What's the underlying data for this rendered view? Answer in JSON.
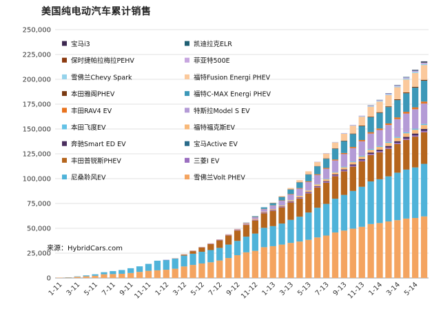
{
  "title": "美国纯电动汽车累计销售",
  "source": "来源：HybridCars.com",
  "chart_data": {
    "type": "bar",
    "stacked": true,
    "title": "美国纯电动汽车累计销售",
    "xlabel": "",
    "ylabel": "",
    "ylim": [
      0,
      250000
    ],
    "yticks": [
      "0",
      "25,000",
      "50,000",
      "75,000",
      "100,000",
      "125,000",
      "150,000",
      "175,000",
      "200,000",
      "225,000",
      "250,000"
    ],
    "categories": [
      "1-11",
      "2-11",
      "3-11",
      "4-11",
      "5-11",
      "6-11",
      "7-11",
      "8-11",
      "9-11",
      "10-11",
      "11-11",
      "12-11",
      "1-12",
      "2-12",
      "3-12",
      "4-12",
      "5-12",
      "6-12",
      "7-12",
      "8-12",
      "9-12",
      "10-12",
      "11-12",
      "12-12",
      "1-13",
      "2-13",
      "3-13",
      "4-13",
      "5-13",
      "6-13",
      "7-13",
      "8-13",
      "9-13",
      "10-13",
      "11-13",
      "12-13",
      "1-14",
      "2-14",
      "3-14",
      "4-14",
      "5-14",
      "6-14"
    ],
    "x_tick_labels": [
      "1-11",
      "3-11",
      "5-11",
      "7-11",
      "9-11",
      "11-11",
      "1-12",
      "3-12",
      "5-12",
      "7-12",
      "9-12",
      "11-12",
      "1-13",
      "3-13",
      "5-13",
      "7-13",
      "9-13",
      "11-13",
      "1-14",
      "3-14",
      "5-14"
    ],
    "grid": true,
    "series": [
      {
        "name": "雪佛兰Volt PHEV",
        "color": "#f4a460",
        "values": [
          300,
          600,
          1200,
          1700,
          2200,
          3700,
          3900,
          4200,
          5000,
          6100,
          7200,
          7700,
          8300,
          9300,
          11600,
          13100,
          14600,
          15800,
          17600,
          20100,
          22900,
          25800,
          27300,
          31000,
          32000,
          33600,
          35300,
          36700,
          38400,
          40800,
          42700,
          45800,
          47700,
          49600,
          51500,
          54300,
          55300,
          56900,
          58200,
          59800,
          60400,
          62000
        ]
      },
      {
        "name": "尼桑聆风EV",
        "color": "#4fb3d9",
        "values": [
          0,
          100,
          400,
          900,
          1500,
          2100,
          3000,
          3800,
          4800,
          5600,
          7000,
          9700,
          9800,
          10300,
          10900,
          11300,
          11800,
          12300,
          12700,
          13500,
          14400,
          15800,
          17400,
          19500,
          20200,
          21200,
          23200,
          25000,
          27500,
          29900,
          31900,
          34000,
          35900,
          38000,
          40300,
          42900,
          44100,
          45400,
          47800,
          49300,
          50900,
          52900
        ]
      },
      {
        "name": "丰田普锐斯PHEV",
        "color": "#b5651d",
        "values": [
          0,
          0,
          0,
          0,
          0,
          0,
          0,
          0,
          0,
          0,
          0,
          0,
          0,
          0,
          900,
          2600,
          4300,
          6000,
          7600,
          9200,
          10500,
          11800,
          13200,
          14600,
          15400,
          16300,
          17500,
          18300,
          19300,
          20400,
          21300,
          22600,
          23800,
          24500,
          25600,
          26600,
          27100,
          27800,
          28800,
          30000,
          31000,
          31800
        ]
      },
      {
        "name": "三菱I EV",
        "color": "#9b6fc0",
        "values": [
          0,
          0,
          0,
          0,
          0,
          0,
          0,
          0,
          0,
          0,
          0,
          0,
          100,
          200,
          300,
          400,
          400,
          500,
          500,
          500,
          600,
          600,
          700,
          700,
          700,
          800,
          800,
          800,
          900,
          900,
          1000,
          1000,
          1000,
          1100,
          1100,
          1100,
          1100,
          1200,
          1200,
          1200,
          1200,
          1300
        ]
      },
      {
        "name": "宝马Active EV",
        "color": "#2a6b8a",
        "values": [
          0,
          0,
          0,
          0,
          0,
          0,
          0,
          0,
          0,
          0,
          0,
          0,
          0,
          0,
          0,
          0,
          0,
          0,
          0,
          0,
          0,
          0,
          0,
          0,
          0,
          0,
          0,
          0,
          0,
          0,
          0,
          0,
          0,
          0,
          0,
          0,
          0,
          0,
          0,
          0,
          0,
          0
        ]
      },
      {
        "name": "奔驰Smart ED EV",
        "color": "#4a2e5e",
        "values": [
          0,
          0,
          0,
          0,
          0,
          0,
          0,
          0,
          0,
          0,
          0,
          0,
          0,
          0,
          0,
          0,
          0,
          0,
          0,
          0,
          0,
          0,
          0,
          100,
          100,
          200,
          300,
          400,
          500,
          500,
          600,
          800,
          900,
          1100,
          1200,
          1400,
          1500,
          1600,
          1700,
          1800,
          1900,
          2000
        ]
      },
      {
        "name": "福特福克斯EV",
        "color": "#f8b97a",
        "values": [
          0,
          0,
          0,
          0,
          0,
          0,
          0,
          0,
          0,
          0,
          0,
          0,
          0,
          100,
          100,
          200,
          200,
          300,
          400,
          500,
          600,
          700,
          800,
          800,
          900,
          1000,
          1200,
          1400,
          1500,
          1700,
          1900,
          2000,
          2100,
          2300,
          2500,
          2700,
          2900,
          3100,
          3400,
          3600,
          3800,
          4000
        ]
      },
      {
        "name": "本田飞度EV",
        "color": "#64c2e6",
        "values": [
          0,
          0,
          0,
          0,
          0,
          0,
          0,
          0,
          0,
          0,
          0,
          0,
          0,
          0,
          0,
          0,
          0,
          0,
          0,
          0,
          0,
          0,
          0,
          0,
          0,
          100,
          200,
          300,
          300,
          400,
          500,
          600,
          700,
          700,
          800,
          900,
          900,
          1000,
          1000,
          1000,
          1100,
          1100
        ]
      },
      {
        "name": "特斯拉Model S EV",
        "color": "#b49bd6",
        "values": [
          0,
          0,
          0,
          0,
          0,
          0,
          0,
          0,
          0,
          0,
          0,
          0,
          0,
          0,
          0,
          0,
          0,
          0,
          100,
          200,
          400,
          800,
          1800,
          2650,
          3500,
          4500,
          5500,
          7000,
          8200,
          9000,
          10000,
          11500,
          12600,
          13400,
          14600,
          15500,
          16100,
          17000,
          17800,
          18800,
          19600,
          20500
        ]
      },
      {
        "name": "丰田RAV4 EV",
        "color": "#e8731e",
        "values": [
          0,
          0,
          0,
          0,
          0,
          0,
          0,
          0,
          0,
          0,
          0,
          0,
          0,
          0,
          0,
          0,
          0,
          0,
          0,
          0,
          0,
          100,
          200,
          200,
          300,
          400,
          500,
          600,
          700,
          800,
          900,
          1000,
          1100,
          1200,
          1300,
          1400,
          1500,
          1600,
          1700,
          1800,
          1900,
          2000
        ]
      },
      {
        "name": "福特C-MAX Energi PHEV",
        "color": "#3c98b8",
        "values": [
          0,
          0,
          0,
          0,
          0,
          0,
          0,
          0,
          0,
          0,
          0,
          0,
          0,
          0,
          0,
          0,
          0,
          0,
          0,
          0,
          0,
          100,
          800,
          1600,
          2300,
          3500,
          4600,
          5700,
          6800,
          8000,
          9200,
          10800,
          12000,
          13000,
          14000,
          15000,
          15700,
          16500,
          17500,
          18700,
          19800,
          21000
        ]
      },
      {
        "name": "本田雅阁PHEV",
        "color": "#7a3a12",
        "values": [
          0,
          0,
          0,
          0,
          0,
          0,
          0,
          0,
          0,
          0,
          0,
          0,
          0,
          0,
          0,
          0,
          0,
          0,
          0,
          0,
          0,
          0,
          0,
          0,
          100,
          100,
          200,
          200,
          300,
          300,
          400,
          400,
          500,
          500,
          600,
          600,
          700,
          700,
          800,
          800,
          900,
          900
        ]
      },
      {
        "name": "福特Fusion Energi PHEV",
        "color": "#fbc99c",
        "values": [
          0,
          0,
          0,
          0,
          0,
          0,
          0,
          0,
          0,
          0,
          0,
          0,
          0,
          0,
          0,
          0,
          0,
          0,
          0,
          0,
          0,
          0,
          0,
          0,
          300,
          700,
          1300,
          2100,
          3000,
          4100,
          5000,
          5900,
          6900,
          7900,
          8800,
          10000,
          10700,
          11300,
          12100,
          13000,
          13900,
          14800
        ]
      },
      {
        "name": "雪佛兰Chevy Spark",
        "color": "#95d3eb",
        "values": [
          0,
          0,
          0,
          0,
          0,
          0,
          0,
          0,
          0,
          0,
          0,
          0,
          0,
          0,
          0,
          0,
          0,
          0,
          0,
          0,
          0,
          0,
          0,
          0,
          0,
          0,
          0,
          0,
          0,
          100,
          100,
          200,
          300,
          400,
          500,
          600,
          700,
          800,
          900,
          1000,
          1100,
          1200
        ]
      },
      {
        "name": "菲亚特500E",
        "color": "#c7a6df",
        "values": [
          0,
          0,
          0,
          0,
          0,
          0,
          0,
          0,
          0,
          0,
          0,
          0,
          0,
          0,
          0,
          0,
          0,
          0,
          0,
          0,
          0,
          0,
          0,
          0,
          0,
          0,
          0,
          0,
          0,
          100,
          200,
          300,
          400,
          500,
          600,
          700,
          800,
          900,
          1000,
          1100,
          1200,
          1300
        ]
      },
      {
        "name": "保时捷帕拉梅拉PEHV",
        "color": "#8b3a10",
        "values": [
          0,
          0,
          0,
          0,
          0,
          0,
          0,
          0,
          0,
          0,
          0,
          0,
          0,
          0,
          0,
          0,
          0,
          0,
          0,
          0,
          0,
          0,
          0,
          0,
          0,
          0,
          0,
          0,
          0,
          0,
          0,
          0,
          0,
          0,
          0,
          0,
          0,
          0,
          0,
          0,
          0,
          100
        ]
      },
      {
        "name": "凯迪拉克ELR",
        "color": "#1f5f73",
        "values": [
          0,
          0,
          0,
          0,
          0,
          0,
          0,
          0,
          0,
          0,
          0,
          0,
          0,
          0,
          0,
          0,
          0,
          0,
          0,
          0,
          0,
          0,
          0,
          0,
          0,
          0,
          0,
          0,
          0,
          0,
          0,
          0,
          0,
          0,
          0,
          100,
          200,
          300,
          400,
          500,
          600,
          700
        ]
      },
      {
        "name": "宝马i3",
        "color": "#3d2850",
        "values": [
          0,
          0,
          0,
          0,
          0,
          0,
          0,
          0,
          0,
          0,
          0,
          0,
          0,
          0,
          0,
          0,
          0,
          0,
          0,
          0,
          0,
          0,
          0,
          0,
          0,
          0,
          0,
          0,
          0,
          0,
          0,
          0,
          0,
          0,
          0,
          0,
          0,
          0,
          0,
          0,
          300,
          500
        ]
      }
    ],
    "legend": [
      {
        "name": "宝马i3",
        "color": "#3d2850"
      },
      {
        "name": "凯迪拉克ELR",
        "color": "#1f5f73"
      },
      {
        "name": "保时捷帕拉梅拉PEHV",
        "color": "#8b3a10"
      },
      {
        "name": "菲亚特500E",
        "color": "#c7a6df"
      },
      {
        "name": "雪佛兰Chevy Spark",
        "color": "#95d3eb"
      },
      {
        "name": "福特Fusion Energi PHEV",
        "color": "#fbc99c"
      },
      {
        "name": "本田雅阁PHEV",
        "color": "#7a3a12"
      },
      {
        "name": "福特C-MAX Energi PHEV",
        "color": "#3c98b8"
      },
      {
        "name": "丰田RAV4 EV",
        "color": "#e8731e"
      },
      {
        "name": "特斯拉Model S EV",
        "color": "#b49bd6"
      },
      {
        "name": "本田飞度EV",
        "color": "#64c2e6"
      },
      {
        "name": "福特福克斯EV",
        "color": "#f8b97a"
      },
      {
        "name": "奔驰Smart ED EV",
        "color": "#4a2e5e"
      },
      {
        "name": "宝马Active EV",
        "color": "#2a6b8a"
      },
      {
        "name": "丰田普锐斯PHEV",
        "color": "#b5651d"
      },
      {
        "name": "三菱I EV",
        "color": "#9b6fc0"
      },
      {
        "name": "尼桑聆风EV",
        "color": "#4fb3d9"
      },
      {
        "name": "雪佛兰Volt PHEV",
        "color": "#f4a460"
      }
    ],
    "legend_position": "top-left"
  }
}
